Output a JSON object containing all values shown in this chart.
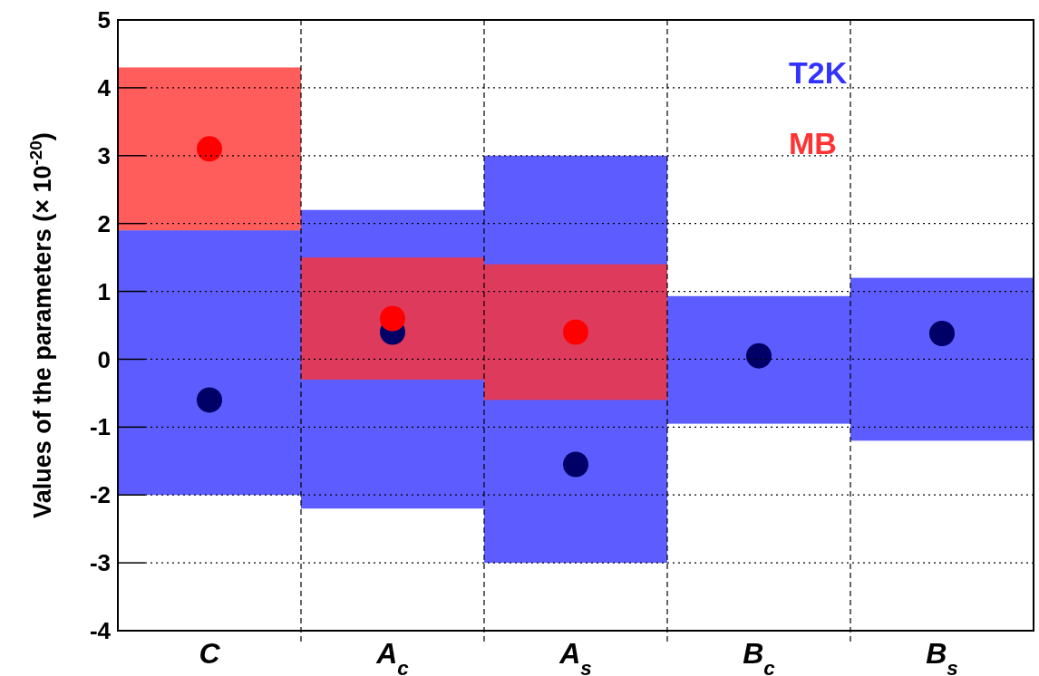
{
  "chart_data": {
    "type": "bar",
    "ylabel": "Values of the parameters (× 10$^{-20}$)",
    "categories": [
      "C",
      "A$_{c}$",
      "A$_{s}$",
      "B$_{c}$",
      "B$_{s}$"
    ],
    "series": [
      {
        "name": "T2K",
        "type": "bar",
        "color": "#3333ff",
        "base": [
          -2,
          -2.2,
          -3,
          -0.95,
          -1.2
        ],
        "values": [
          3.9,
          4.4,
          6,
          1.88,
          2.4
        ]
      },
      {
        "name": "MB",
        "type": "bar",
        "color": "#ff3333",
        "base": [
          1.9,
          -0.3,
          -0.6,
          null,
          null
        ],
        "values": [
          2.4,
          1.8,
          2,
          null,
          null
        ]
      },
      {
        "type": "scatter",
        "color": "#000066",
        "x": [
          "C",
          "A$_{c}$",
          "A$_{s}$",
          "B$_{c}$",
          "B$_{s}$"
        ],
        "values": [
          -0.6,
          0.4,
          -1.55,
          0.05,
          0.38
        ]
      },
      {
        "type": "scatter",
        "color": "#ff0000",
        "x": [
          "C",
          "A$_{c}$",
          "A$_{s}$"
        ],
        "values": [
          3.1,
          0.6,
          0.4
        ]
      }
    ],
    "ylim": [
      -4,
      5
    ],
    "yticks": [
      -4,
      -3,
      -2,
      -1,
      0,
      1,
      2,
      3,
      4,
      5
    ],
    "grid": true,
    "legend": "top right",
    "marker": "circle"
  }
}
